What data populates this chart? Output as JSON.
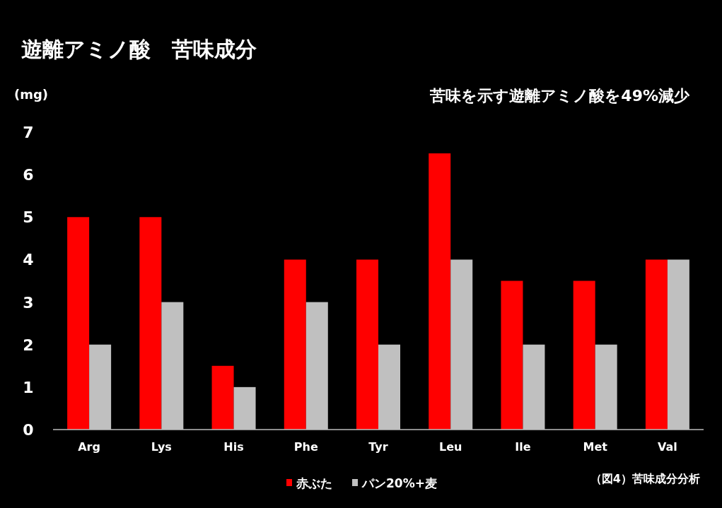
{
  "chart_data": {
    "type": "bar",
    "title": "遊離アミノ酸　苦味成分",
    "subtitle": "苦味を示す遊離アミノ酸を49%減少",
    "ylabel": "(mg)",
    "categories": [
      "Arg",
      "Lys",
      "His",
      "Phe",
      "Tyr",
      "Leu",
      "Ile",
      "Met",
      "Val"
    ],
    "series": [
      {
        "name": "赤ぶた",
        "color": "#ff0000",
        "values": [
          5,
          5,
          1.5,
          4,
          4,
          6.5,
          3.5,
          3.5,
          4
        ]
      },
      {
        "name": "パン20%+麦",
        "color": "#c0c0c0",
        "values": [
          2,
          3,
          1,
          3,
          2,
          4,
          2,
          2,
          4
        ]
      }
    ],
    "ylim": [
      0,
      7
    ],
    "yticks": [
      0,
      1,
      2,
      3,
      4,
      5,
      6,
      7
    ],
    "grid": false,
    "legend": "bottom",
    "annotations": [
      "（図4）苦味成分分析"
    ]
  }
}
